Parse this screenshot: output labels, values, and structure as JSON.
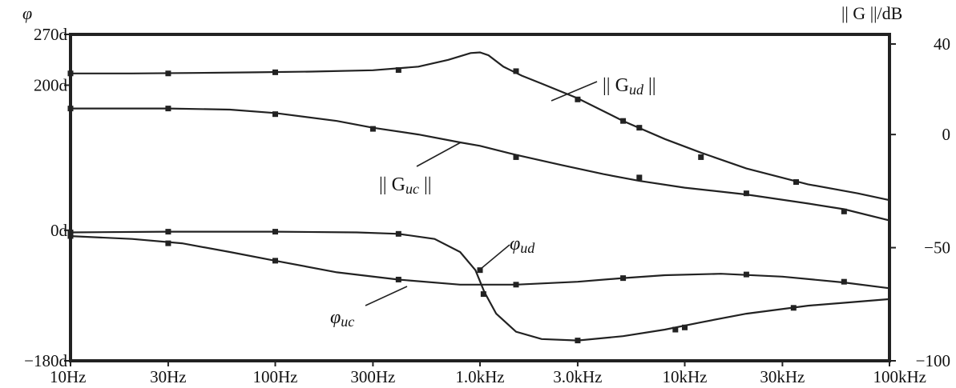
{
  "chart_data": {
    "type": "line",
    "x_scale": "log",
    "x_ticks": [
      "10Hz",
      "30Hz",
      "100Hz",
      "300Hz",
      "1.0kHz",
      "3.0kHz",
      "10kHz",
      "30kHz",
      "100kHz"
    ],
    "x_tick_values": [
      10,
      30,
      100,
      300,
      1000,
      3000,
      10000,
      30000,
      100000
    ],
    "xlim": [
      10,
      100000
    ],
    "left_axis": {
      "title": "φ",
      "ticks": [
        "270d",
        "200d",
        "0d",
        "-180d"
      ],
      "tick_values": [
        270,
        200,
        0,
        -180
      ],
      "ylim": [
        -180,
        270
      ]
    },
    "right_axis": {
      "title": "|| G ||/dB",
      "ticks": [
        "40",
        "0",
        "-50",
        "-100"
      ],
      "tick_values": [
        40,
        0,
        -50,
        -100
      ],
      "ylim": [
        -100,
        40
      ]
    },
    "grid": false,
    "series": [
      {
        "name": "||Gud||",
        "label_main": "|| G",
        "label_sub": "ud",
        "label_tail": " ||",
        "axis": "right",
        "points": [
          [
            10,
            27
          ],
          [
            20,
            27
          ],
          [
            40,
            27.2
          ],
          [
            80,
            27.5
          ],
          [
            150,
            27.8
          ],
          [
            300,
            28.4
          ],
          [
            500,
            30
          ],
          [
            700,
            33
          ],
          [
            900,
            36
          ],
          [
            1000,
            36.3
          ],
          [
            1100,
            35
          ],
          [
            1300,
            30
          ],
          [
            1600,
            26
          ],
          [
            2000,
            22.5
          ],
          [
            3000,
            16
          ],
          [
            5000,
            6
          ],
          [
            8000,
            -2
          ],
          [
            12000,
            -8
          ],
          [
            20000,
            -15
          ],
          [
            40000,
            -22
          ],
          [
            70000,
            -26
          ],
          [
            100000,
            -29
          ]
        ],
        "markers": [
          [
            10,
            27
          ],
          [
            30,
            27
          ],
          [
            100,
            27.5
          ],
          [
            400,
            28.5
          ],
          [
            1500,
            28
          ],
          [
            3000,
            15.5
          ],
          [
            5000,
            6
          ],
          [
            6000,
            3
          ],
          [
            12000,
            -10
          ],
          [
            35000,
            -21
          ]
        ]
      },
      {
        "name": "||Guc||",
        "label_main": "|| G",
        "label_sub": "uc",
        "label_tail": " ||",
        "axis": "right",
        "points": [
          [
            10,
            11.5
          ],
          [
            30,
            11.5
          ],
          [
            60,
            11
          ],
          [
            100,
            9.5
          ],
          [
            200,
            6
          ],
          [
            300,
            3
          ],
          [
            500,
            0
          ],
          [
            800,
            -3.5
          ],
          [
            1000,
            -5
          ],
          [
            1500,
            -9
          ],
          [
            2500,
            -13.5
          ],
          [
            4000,
            -17.5
          ],
          [
            6000,
            -20.5
          ],
          [
            10000,
            -23.5
          ],
          [
            20000,
            -26.5
          ],
          [
            40000,
            -30.5
          ],
          [
            60000,
            -33
          ],
          [
            100000,
            -38
          ]
        ],
        "markers": [
          [
            10,
            11.5
          ],
          [
            30,
            11.5
          ],
          [
            100,
            9
          ],
          [
            300,
            2.5
          ],
          [
            1500,
            -10
          ],
          [
            6000,
            -19
          ],
          [
            20000,
            -26
          ],
          [
            60000,
            -34
          ]
        ]
      },
      {
        "name": "φud",
        "label_main": "φ",
        "label_sub": "ud",
        "axis": "left",
        "points": [
          [
            10,
            -3
          ],
          [
            30,
            -2
          ],
          [
            100,
            -2
          ],
          [
            250,
            -3
          ],
          [
            400,
            -5
          ],
          [
            600,
            -12
          ],
          [
            800,
            -30
          ],
          [
            950,
            -55
          ],
          [
            1050,
            -85
          ],
          [
            1200,
            -115
          ],
          [
            1500,
            -140
          ],
          [
            2000,
            -150
          ],
          [
            3000,
            -152
          ],
          [
            5000,
            -146
          ],
          [
            8000,
            -137
          ],
          [
            12000,
            -127
          ],
          [
            20000,
            -115
          ],
          [
            40000,
            -104
          ],
          [
            60000,
            -100
          ],
          [
            100000,
            -95
          ]
        ],
        "markers": [
          [
            10,
            -3
          ],
          [
            30,
            -2
          ],
          [
            100,
            -2
          ],
          [
            400,
            -5
          ],
          [
            1000,
            -55
          ],
          [
            1040,
            -88
          ],
          [
            3000,
            -152
          ],
          [
            9000,
            -137
          ],
          [
            10000,
            -134
          ],
          [
            34000,
            -107
          ]
        ]
      },
      {
        "name": "φuc",
        "label_main": "φ",
        "label_sub": "uc",
        "axis": "left",
        "points": [
          [
            10,
            -8
          ],
          [
            20,
            -12
          ],
          [
            35,
            -18
          ],
          [
            60,
            -30
          ],
          [
            100,
            -42
          ],
          [
            200,
            -58
          ],
          [
            400,
            -68
          ],
          [
            800,
            -75
          ],
          [
            1500,
            -75
          ],
          [
            3000,
            -71
          ],
          [
            5000,
            -66
          ],
          [
            8000,
            -62
          ],
          [
            15000,
            -60
          ],
          [
            30000,
            -64
          ],
          [
            60000,
            -72
          ],
          [
            100000,
            -80
          ]
        ],
        "markers": [
          [
            10,
            -8
          ],
          [
            30,
            -18
          ],
          [
            100,
            -42
          ],
          [
            400,
            -68
          ],
          [
            1500,
            -75
          ],
          [
            5000,
            -66
          ],
          [
            20000,
            -61
          ],
          [
            60000,
            -71
          ]
        ]
      }
    ]
  }
}
